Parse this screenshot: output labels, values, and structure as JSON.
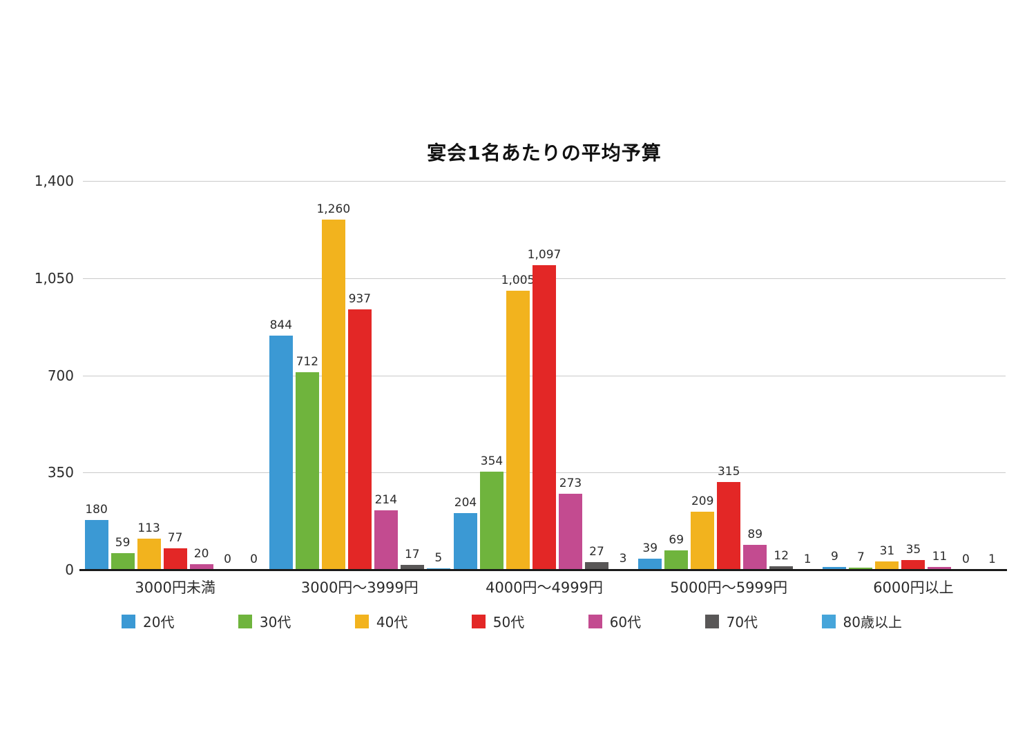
{
  "chart_data": {
    "type": "bar",
    "title": "宴会1名あたりの平均予算",
    "categories": [
      "3000円未満",
      "3000円〜3999円",
      "4000円〜4999円",
      "5000円〜5999円",
      "6000円以上"
    ],
    "series": [
      {
        "name": "20代",
        "color": "#3b99d4",
        "values": [
          180,
          844,
          204,
          39,
          9
        ]
      },
      {
        "name": "30代",
        "color": "#6fb43d",
        "values": [
          59,
          712,
          354,
          69,
          7
        ]
      },
      {
        "name": "40代",
        "color": "#f2b31e",
        "values": [
          113,
          1260,
          1005,
          209,
          31
        ]
      },
      {
        "name": "50代",
        "color": "#e32726",
        "values": [
          77,
          937,
          1097,
          315,
          35
        ]
      },
      {
        "name": "60代",
        "color": "#c34b90",
        "values": [
          20,
          214,
          273,
          89,
          11
        ]
      },
      {
        "name": "70代",
        "color": "#595757",
        "values": [
          0,
          17,
          27,
          12,
          0
        ]
      },
      {
        "name": "80歳以上",
        "color": "#46a5da",
        "values": [
          0,
          5,
          3,
          1,
          1
        ]
      }
    ],
    "y_ticks": [
      0,
      350,
      700,
      1050,
      1400
    ],
    "ylim": [
      0,
      1400
    ],
    "grid": true,
    "legend_position": "bottom",
    "value_labels": true
  },
  "colors": {
    "gridline": "#c9c9c9",
    "baseline": "#1a1a1a",
    "text": "#2b2b2b"
  }
}
